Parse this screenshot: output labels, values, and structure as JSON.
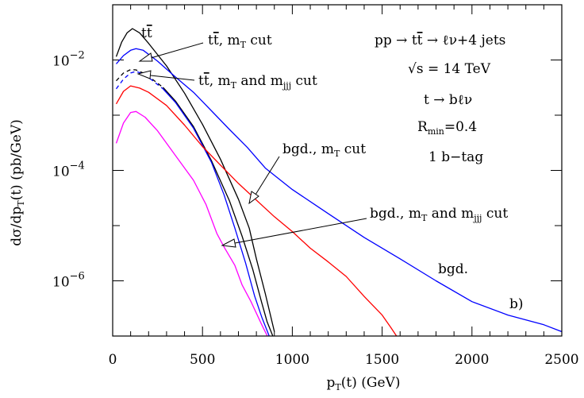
{
  "chart_data": {
    "type": "line",
    "xlabel": "p<sub>T</sub>(t) (GeV)",
    "ylabel": "dσ/dp<sub>T</sub>(t) (pb/GeV)",
    "xlim": [
      0,
      2500
    ],
    "ylim": [
      1e-07,
      0.1
    ],
    "yscale": "log",
    "x_ticks": [
      0,
      500,
      1000,
      1500,
      2000,
      2500
    ],
    "x_tick_labels": [
      "0",
      "500",
      "1000",
      "1500",
      "2000",
      "2500"
    ],
    "y_ticks": [
      1e-06,
      0.0001,
      0.01
    ],
    "y_tick_labels": [
      {
        "base": "10",
        "exp": "−6"
      },
      {
        "base": "10",
        "exp": "−4"
      },
      {
        "base": "10",
        "exp": "−2"
      }
    ],
    "grid": false,
    "panel_label": "b)",
    "info_block": [
      "pp → t t̄ → ℓν+4 jets",
      "√s = 14 TeV",
      "t → bℓν",
      "R_min=0.4",
      "1 b−tag"
    ],
    "annotations": [
      {
        "text": "t t̄"
      },
      {
        "text": "t t̄, m_T cut"
      },
      {
        "text": "t t̄, m_T and m_jjj cut"
      },
      {
        "text": "bgd., m_T cut"
      },
      {
        "text": "bgd., m_T and m_jjj cut"
      },
      {
        "text": "bgd."
      }
    ],
    "series": [
      {
        "color": "#000000",
        "dash": false,
        "x": [
          20,
          50,
          80,
          110,
          150,
          200,
          300,
          400,
          500,
          600,
          700,
          760,
          800,
          850,
          900
        ],
        "y": [
          0.0115,
          0.021,
          0.031,
          0.037,
          0.031,
          0.02,
          0.0078,
          0.0025,
          0.00068,
          0.00016,
          3e-05,
          9e-06,
          2.5e-06,
          5.8e-07,
          1.2e-07
        ]
      },
      {
        "color": "#0000ff",
        "dash": false,
        "x": [
          20,
          60,
          100,
          130,
          170,
          250,
          350,
          450,
          550,
          650,
          750,
          850,
          1000,
          1200,
          1400,
          1600,
          1800,
          2000,
          2200,
          2400,
          2500
        ],
        "y": [
          0.0085,
          0.012,
          0.015,
          0.016,
          0.015,
          0.0095,
          0.0049,
          0.0026,
          0.0012,
          0.00055,
          0.00026,
          0.00011,
          4.5e-05,
          1.65e-05,
          6.1e-06,
          2.5e-06,
          1e-06,
          4.2e-07,
          2.4e-07,
          1.6e-07,
          1.2e-07
        ]
      },
      {
        "color": "#000000",
        "dash": true,
        "x": [
          20,
          60,
          100,
          130,
          170,
          220,
          280
        ],
        "y": [
          0.0042,
          0.0058,
          0.0067,
          0.0066,
          0.0058,
          0.0045,
          0.0032
        ]
      },
      {
        "color": "#0000ff",
        "dash": true,
        "x": [
          20,
          60,
          100,
          130,
          170,
          220,
          280
        ],
        "y": [
          0.003,
          0.0045,
          0.0058,
          0.0062,
          0.0056,
          0.0043,
          0.003
        ]
      },
      {
        "color": "#000000",
        "dash": false,
        "x": [
          280,
          350,
          450,
          550,
          650,
          720,
          780,
          830,
          860,
          900
        ],
        "y": [
          0.0032,
          0.0018,
          0.00062,
          0.00015,
          2.8e-05,
          6.5e-06,
          1.6e-06,
          4e-07,
          1.8e-07,
          8.5e-08
        ]
      },
      {
        "color": "#0000ff",
        "dash": false,
        "x": [
          280,
          350,
          450,
          550,
          620,
          680,
          740,
          790,
          830,
          880
        ],
        "y": [
          0.003,
          0.0017,
          0.00058,
          0.00014,
          3.6e-05,
          9e-06,
          2.1e-06,
          5.3e-07,
          2.2e-07,
          8.5e-08
        ]
      },
      {
        "color": "#ff0000",
        "dash": false,
        "x": [
          20,
          60,
          100,
          150,
          200,
          300,
          400,
          500,
          600,
          700,
          800,
          900,
          1000,
          1100,
          1200,
          1300,
          1400,
          1500,
          1550,
          1600
        ],
        "y": [
          0.0016,
          0.0027,
          0.0034,
          0.0031,
          0.0026,
          0.0015,
          0.00066,
          0.00027,
          0.000125,
          5.8e-05,
          2.9e-05,
          1.45e-05,
          7.8e-06,
          3.9e-06,
          2.2e-06,
          1.2e-06,
          5.2e-07,
          2.4e-07,
          1.4e-07,
          8e-08
        ]
      },
      {
        "color": "#ff00ff",
        "dash": false,
        "x": [
          20,
          60,
          100,
          130,
          180,
          250,
          350,
          450,
          520,
          580,
          620,
          680,
          720,
          770,
          830,
          880
        ],
        "y": [
          0.00031,
          0.00072,
          0.00112,
          0.00117,
          0.00092,
          0.00052,
          0.000185,
          6.6e-05,
          2.4e-05,
          7.2e-06,
          4.1e-06,
          1.9e-06,
          8.5e-07,
          4.2e-07,
          1.6e-07,
          7.5e-08
        ]
      }
    ]
  }
}
